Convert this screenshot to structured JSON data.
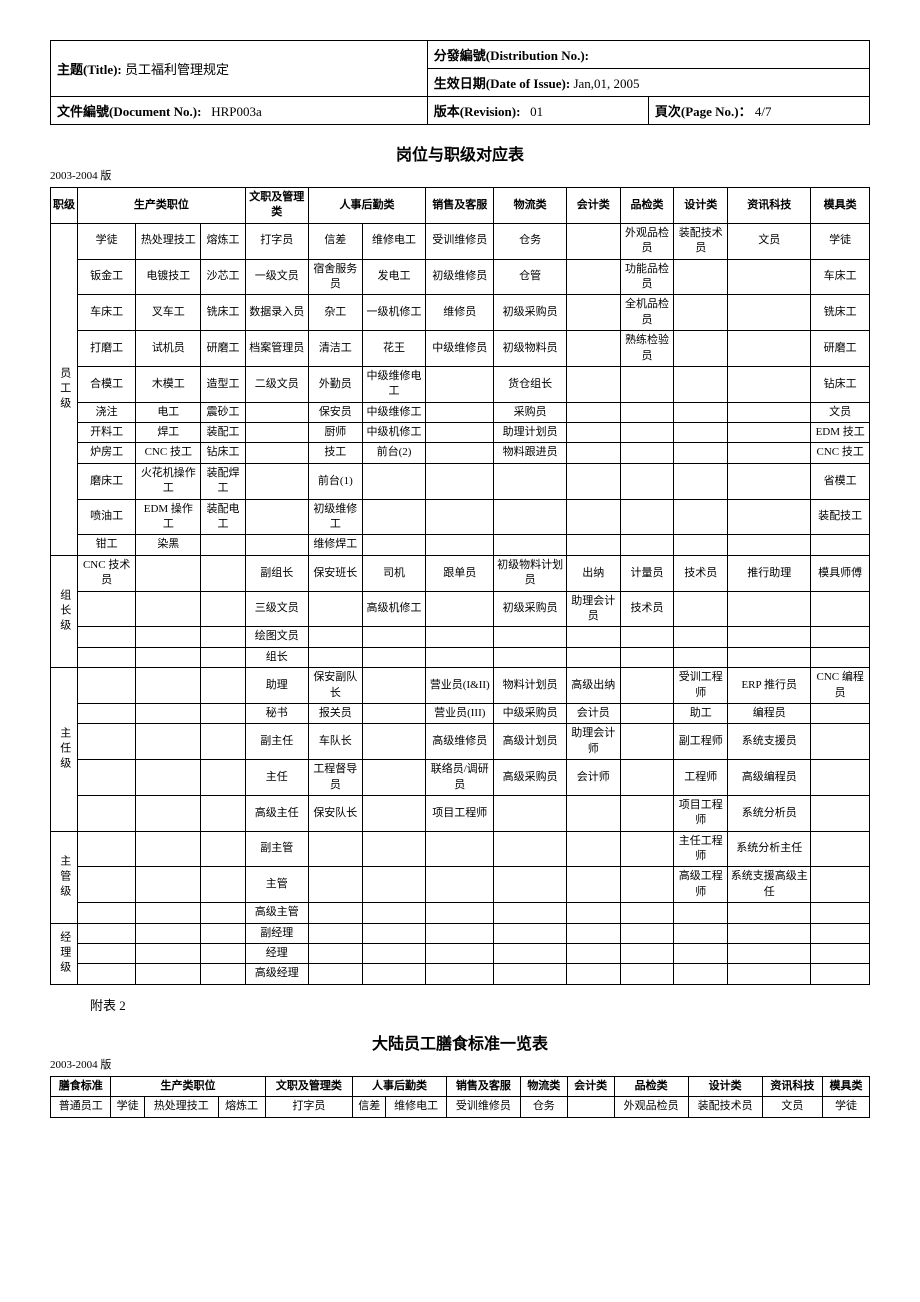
{
  "header": {
    "title_label": "主题(Title):",
    "title_value": "员工福利管理规定",
    "dist_label": "分發編號(Distribution No.):",
    "dist_value": "",
    "date_label": "生效日期(Date of Issue):",
    "date_value": "Jan,01, 2005",
    "doc_label": "文件編號(Document No.):",
    "doc_value": "HRP003a",
    "rev_label": "版本(Revision):",
    "rev_value": "01",
    "page_label": "頁次(Page No.)：",
    "page_value": "4/7"
  },
  "table1": {
    "title": "岗位与职级对应表",
    "version": "2003-2004 版",
    "columns": [
      "职级",
      "生产类职位",
      "",
      "",
      "文职及管理类",
      "人事后勤类",
      "",
      "销售及客服",
      "物流类",
      "会计类",
      "品检类",
      "设计类",
      "资讯科技",
      "模具类"
    ],
    "groups": [
      {
        "label": "员工级",
        "rows": [
          [
            "学徒",
            "热处理技工",
            "熔炼工",
            "打字员",
            "信差",
            "维修电工",
            "受训维修员",
            "仓务",
            "",
            "外观品检员",
            "装配技术员",
            "文员",
            "学徒"
          ],
          [
            "钣金工",
            "电镀技工",
            "沙芯工",
            "一级文员",
            "宿舍服务员",
            "发电工",
            "初级维修员",
            "仓管",
            "",
            "功能品检员",
            "",
            "",
            "车床工"
          ],
          [
            "车床工",
            "叉车工",
            "铣床工",
            "数据录入员",
            "杂工",
            "一级机修工",
            "维修员",
            "初级采购员",
            "",
            "全机品检员",
            "",
            "",
            "铣床工"
          ],
          [
            "打磨工",
            "试机员",
            "研磨工",
            "档案管理员",
            "清洁工",
            "花王",
            "中级维修员",
            "初级物料员",
            "",
            "熟练检验员",
            "",
            "",
            "研磨工"
          ],
          [
            "合模工",
            "木模工",
            "造型工",
            "二级文员",
            "外勤员",
            "中级维修电工",
            "",
            "货仓组长",
            "",
            "",
            "",
            "",
            "钻床工"
          ],
          [
            "浇注",
            "电工",
            "震砂工",
            "",
            "保安员",
            "中级维修工",
            "",
            "采购员",
            "",
            "",
            "",
            "",
            "文员"
          ],
          [
            "开料工",
            "焊工",
            "装配工",
            "",
            "厨师",
            "中级机修工",
            "",
            "助理计划员",
            "",
            "",
            "",
            "",
            "EDM 技工"
          ],
          [
            "炉房工",
            "CNC 技工",
            "钻床工",
            "",
            "技工",
            "前台(2)",
            "",
            "物料跟进员",
            "",
            "",
            "",
            "",
            "CNC 技工"
          ],
          [
            "磨床工",
            "火花机操作工",
            "装配焊工",
            "",
            "前台(1)",
            "",
            "",
            "",
            "",
            "",
            "",
            "",
            "省模工"
          ],
          [
            "喷油工",
            "EDM 操作工",
            "装配电工",
            "",
            "初级维修工",
            "",
            "",
            "",
            "",
            "",
            "",
            "",
            "装配技工"
          ],
          [
            "钳工",
            "染黑",
            "",
            "",
            "维修焊工",
            "",
            "",
            "",
            "",
            "",
            "",
            "",
            ""
          ]
        ]
      },
      {
        "label": "组长级",
        "rows": [
          [
            "CNC 技术员",
            "",
            "",
            "副组长",
            "保安班长",
            "司机",
            "跟单员",
            "初级物料计划员",
            "出纳",
            "计量员",
            "技术员",
            "推行助理",
            "模具师傅"
          ],
          [
            "",
            "",
            "",
            "三级文员",
            "",
            "高级机修工",
            "",
            "初级采购员",
            "助理会计员",
            "技术员",
            "",
            "",
            ""
          ],
          [
            "",
            "",
            "",
            "绘图文员",
            "",
            "",
            "",
            "",
            "",
            "",
            "",
            "",
            ""
          ],
          [
            "",
            "",
            "",
            "组长",
            "",
            "",
            "",
            "",
            "",
            "",
            "",
            "",
            ""
          ]
        ]
      },
      {
        "label": "主任级",
        "rows": [
          [
            "",
            "",
            "",
            "助理",
            "保安副队长",
            "",
            "营业员(I&II)",
            "物料计划员",
            "高级出纳",
            "",
            "受训工程师",
            "ERP 推行员",
            "CNC 编程员"
          ],
          [
            "",
            "",
            "",
            "秘书",
            "报关员",
            "",
            "营业员(III)",
            "中级采购员",
            "会计员",
            "",
            "助工",
            "编程员",
            ""
          ],
          [
            "",
            "",
            "",
            "副主任",
            "车队长",
            "",
            "高级维修员",
            "高级计划员",
            "助理会计师",
            "",
            "副工程师",
            "系统支援员",
            ""
          ],
          [
            "",
            "",
            "",
            "主任",
            "工程督导员",
            "",
            "联络员/调研员",
            "高级采购员",
            "会计师",
            "",
            "工程师",
            "高级编程员",
            ""
          ],
          [
            "",
            "",
            "",
            "高级主任",
            "保安队长",
            "",
            "项目工程师",
            "",
            "",
            "",
            "项目工程师",
            "系统分析员",
            ""
          ]
        ]
      },
      {
        "label": "主管级",
        "rows": [
          [
            "",
            "",
            "",
            "副主管",
            "",
            "",
            "",
            "",
            "",
            "",
            "主任工程师",
            "系统分析主任",
            ""
          ],
          [
            "",
            "",
            "",
            "主管",
            "",
            "",
            "",
            "",
            "",
            "",
            "高级工程师",
            "系统支援高级主任",
            ""
          ],
          [
            "",
            "",
            "",
            "高级主管",
            "",
            "",
            "",
            "",
            "",
            "",
            "",
            "",
            ""
          ]
        ]
      },
      {
        "label": "经理级",
        "rows": [
          [
            "",
            "",
            "",
            "副经理",
            "",
            "",
            "",
            "",
            "",
            "",
            "",
            "",
            ""
          ],
          [
            "",
            "",
            "",
            "经理",
            "",
            "",
            "",
            "",
            "",
            "",
            "",
            "",
            ""
          ],
          [
            "",
            "",
            "",
            "高级经理",
            "",
            "",
            "",
            "",
            "",
            "",
            "",
            "",
            ""
          ]
        ]
      }
    ]
  },
  "attach2": "附表 2",
  "table2": {
    "title": "大陆员工膳食标准一览表",
    "version": "2003-2004 版",
    "columns": [
      "膳食标准",
      "生产类职位",
      "",
      "",
      "文职及管理类",
      "人事后勤类",
      "",
      "销售及客服",
      "物流类",
      "会计类",
      "品检类",
      "设计类",
      "资讯科技",
      "模具类"
    ],
    "rows": [
      [
        "普通员工",
        "学徒",
        "热处理技工",
        "熔炼工",
        "打字员",
        "信差",
        "维修电工",
        "受训维修员",
        "仓务",
        "",
        "外观品检员",
        "装配技术员",
        "文员",
        "学徒"
      ]
    ]
  },
  "style": {
    "border_color": "#000000",
    "background": "#ffffff",
    "header_fontsize": 13,
    "title_fontsize": 16,
    "cell_fontsize": 11
  }
}
